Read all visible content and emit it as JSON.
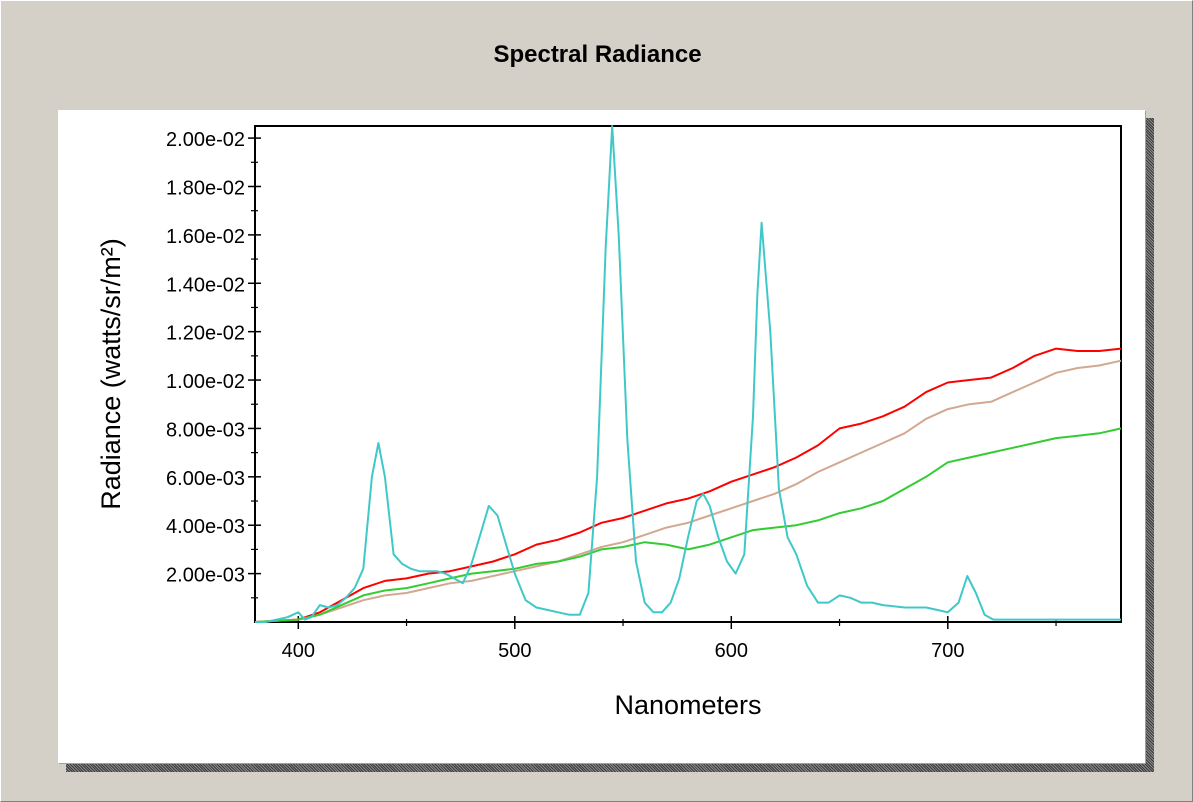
{
  "chart_data": {
    "type": "line",
    "title": "Spectral Radiance",
    "xlabel": "Nanometers",
    "ylabel": "Radiance (watts/sr/m²)",
    "xlim": [
      380,
      780
    ],
    "ylim": [
      0,
      0.0205
    ],
    "xticks": [
      400,
      500,
      600,
      700
    ],
    "xtick_labels": [
      "400",
      "500",
      "600",
      "700"
    ],
    "yticks": [
      0.002,
      0.004,
      0.006,
      0.008,
      0.01,
      0.012,
      0.014,
      0.016,
      0.018,
      0.02
    ],
    "ytick_labels": [
      "2.00e-03",
      "4.00e-03",
      "6.00e-03",
      "8.00e-03",
      "1.00e-02",
      "1.20e-02",
      "1.40e-02",
      "1.60e-02",
      "1.80e-02",
      "2.00e-02"
    ],
    "grid": false,
    "legend": "none",
    "series": [
      {
        "color": "#ff0000",
        "x": [
          380,
          390,
          400,
          410,
          420,
          430,
          440,
          450,
          460,
          470,
          480,
          490,
          500,
          510,
          520,
          530,
          540,
          550,
          560,
          570,
          580,
          590,
          600,
          610,
          620,
          630,
          640,
          650,
          660,
          670,
          680,
          690,
          700,
          710,
          720,
          730,
          740,
          750,
          760,
          770,
          780
        ],
        "y": [
          0.0,
          5e-05,
          0.0001,
          0.0004,
          0.0009,
          0.0014,
          0.0017,
          0.0018,
          0.002,
          0.0021,
          0.0023,
          0.0025,
          0.0028,
          0.0032,
          0.0034,
          0.0037,
          0.0041,
          0.0043,
          0.0046,
          0.0049,
          0.0051,
          0.0054,
          0.0058,
          0.0061,
          0.0064,
          0.0068,
          0.0073,
          0.008,
          0.0082,
          0.0085,
          0.0089,
          0.0095,
          0.0099,
          0.01,
          0.0101,
          0.0105,
          0.011,
          0.0113,
          0.0112,
          0.0112,
          0.0113
        ]
      },
      {
        "color": "#d2a890",
        "x": [
          380,
          390,
          400,
          410,
          420,
          430,
          440,
          450,
          460,
          470,
          480,
          490,
          500,
          510,
          520,
          530,
          540,
          550,
          560,
          570,
          580,
          590,
          600,
          610,
          620,
          630,
          640,
          650,
          660,
          670,
          680,
          690,
          700,
          710,
          720,
          730,
          740,
          750,
          760,
          770,
          780
        ],
        "y": [
          0.0,
          5e-05,
          0.0001,
          0.0003,
          0.0006,
          0.0009,
          0.0011,
          0.0012,
          0.0014,
          0.0016,
          0.0017,
          0.0019,
          0.0021,
          0.0023,
          0.0025,
          0.0028,
          0.0031,
          0.0033,
          0.0036,
          0.0039,
          0.0041,
          0.0044,
          0.0047,
          0.005,
          0.0053,
          0.0057,
          0.0062,
          0.0066,
          0.007,
          0.0074,
          0.0078,
          0.0084,
          0.0088,
          0.009,
          0.0091,
          0.0095,
          0.0099,
          0.0103,
          0.0105,
          0.0106,
          0.0108
        ]
      },
      {
        "color": "#33cc33",
        "x": [
          380,
          390,
          400,
          410,
          420,
          430,
          440,
          450,
          460,
          470,
          480,
          490,
          500,
          510,
          520,
          530,
          540,
          550,
          560,
          570,
          580,
          590,
          600,
          610,
          620,
          630,
          640,
          650,
          660,
          670,
          680,
          690,
          700,
          710,
          720,
          730,
          740,
          750,
          760,
          770,
          780
        ],
        "y": [
          0.0,
          5e-05,
          0.0001,
          0.0003,
          0.0007,
          0.0011,
          0.0013,
          0.0014,
          0.0016,
          0.0018,
          0.002,
          0.0021,
          0.0022,
          0.0024,
          0.0025,
          0.0027,
          0.003,
          0.0031,
          0.0033,
          0.0032,
          0.003,
          0.0032,
          0.0035,
          0.0038,
          0.0039,
          0.004,
          0.0042,
          0.0045,
          0.0047,
          0.005,
          0.0055,
          0.006,
          0.0066,
          0.0068,
          0.007,
          0.0072,
          0.0074,
          0.0076,
          0.0077,
          0.0078,
          0.008
        ]
      },
      {
        "color": "#40c8c8",
        "x": [
          380,
          385,
          390,
          395,
          400,
          403,
          406,
          410,
          414,
          418,
          422,
          426,
          430,
          434,
          437,
          440,
          444,
          448,
          452,
          456,
          460,
          464,
          468,
          472,
          476,
          480,
          484,
          488,
          492,
          496,
          500,
          505,
          510,
          515,
          520,
          525,
          530,
          534,
          538,
          542,
          545,
          548,
          552,
          556,
          560,
          564,
          568,
          572,
          576,
          580,
          584,
          587,
          590,
          594,
          598,
          602,
          606,
          610,
          612,
          614,
          618,
          622,
          626,
          630,
          635,
          640,
          645,
          650,
          655,
          660,
          665,
          670,
          680,
          690,
          695,
          700,
          705,
          709,
          713,
          717,
          721,
          725,
          730,
          740,
          750,
          760,
          770,
          780
        ],
        "y": [
          0.0,
          0.0,
          0.0001,
          0.0002,
          0.0004,
          0.0001,
          0.0002,
          0.0007,
          0.0006,
          0.0007,
          0.001,
          0.0014,
          0.0022,
          0.006,
          0.0074,
          0.006,
          0.0028,
          0.0024,
          0.0022,
          0.0021,
          0.0021,
          0.0021,
          0.002,
          0.0018,
          0.0016,
          0.0024,
          0.0036,
          0.0048,
          0.0044,
          0.0032,
          0.002,
          0.0009,
          0.0006,
          0.0005,
          0.0004,
          0.0003,
          0.0003,
          0.0012,
          0.006,
          0.0155,
          0.0205,
          0.016,
          0.0075,
          0.0025,
          0.0008,
          0.0004,
          0.0004,
          0.0008,
          0.0018,
          0.0035,
          0.005,
          0.0053,
          0.0048,
          0.0035,
          0.0025,
          0.002,
          0.0028,
          0.0085,
          0.0135,
          0.0165,
          0.012,
          0.0055,
          0.0035,
          0.0028,
          0.0015,
          0.0008,
          0.0008,
          0.0011,
          0.001,
          0.0008,
          0.0008,
          0.0007,
          0.0006,
          0.0006,
          0.0005,
          0.0004,
          0.0008,
          0.0019,
          0.0012,
          0.0003,
          0.0001,
          0.0001,
          0.0001,
          0.0001,
          0.0001,
          0.0001,
          0.0001,
          0.0001
        ]
      }
    ]
  }
}
